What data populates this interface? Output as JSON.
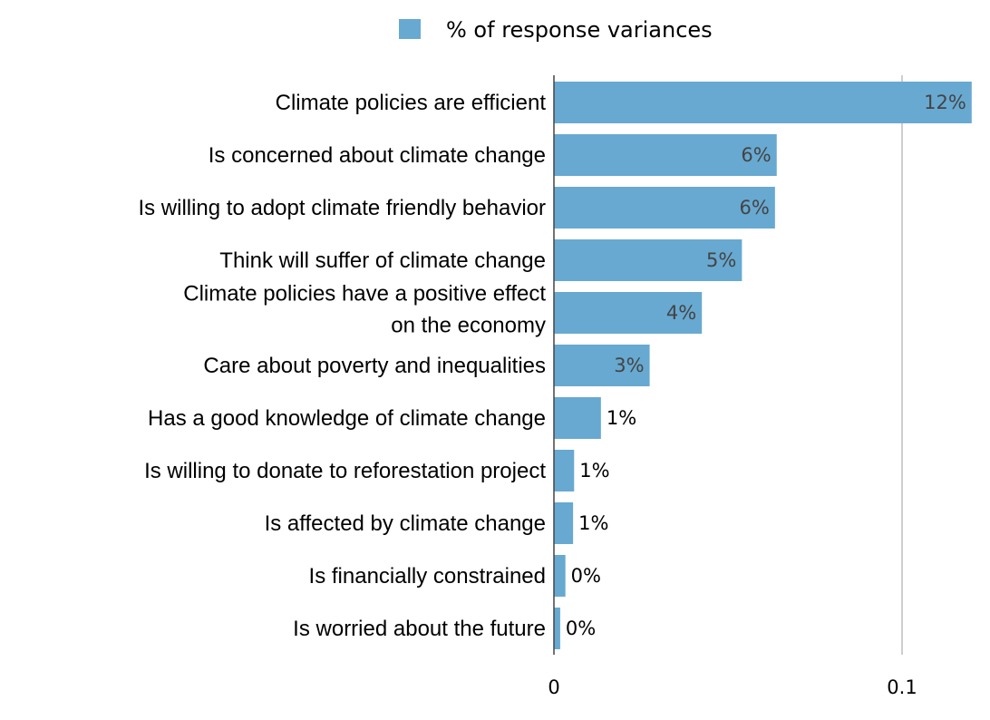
{
  "chart_data": {
    "type": "bar",
    "orientation": "horizontal",
    "legend": {
      "label": "% of response variances",
      "placement": "top-center"
    },
    "categories": [
      [
        "Climate policies are efficient"
      ],
      [
        "Is concerned about climate change"
      ],
      [
        "Is willing to adopt climate friendly behavior"
      ],
      [
        "Think will suffer of climate change"
      ],
      [
        "Climate policies have a positive effect",
        "on the economy"
      ],
      [
        "Care about poverty and inequalities"
      ],
      [
        "Has a good knowledge of climate change"
      ],
      [
        "Is willing to donate to reforestation project"
      ],
      [
        "Is affected by climate change"
      ],
      [
        "Is financially constrained"
      ],
      [
        "Is worried about the future"
      ]
    ],
    "values": [
      0.12,
      0.064,
      0.0635,
      0.054,
      0.0425,
      0.0275,
      0.0135,
      0.0058,
      0.0055,
      0.0033,
      0.0018
    ],
    "data_labels": [
      "12%",
      "6%",
      "6%",
      "5%",
      "4%",
      "3%",
      "1%",
      "1%",
      "1%",
      "0%",
      "0%"
    ],
    "xlim": [
      0,
      0.12
    ],
    "xticks": [
      0,
      0.1
    ],
    "xtick_labels": [
      "0",
      "0.1"
    ],
    "grid": "vertical at x ticks",
    "colors": {
      "bar": "#68a9d1",
      "grid": "#bdbdbd",
      "axis": "#444444",
      "label_inside": "#444444",
      "label_outside": "#000000"
    }
  }
}
